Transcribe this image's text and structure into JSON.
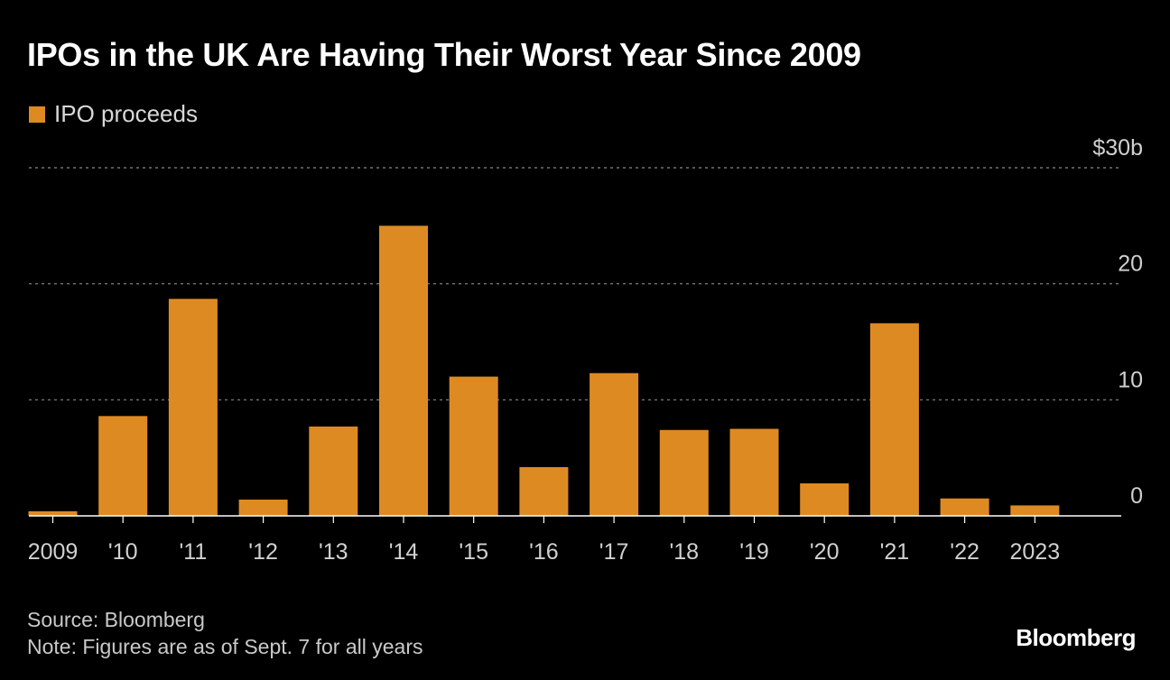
{
  "title": "IPOs in the UK Are Having Their Worst Year Since 2009",
  "legend": {
    "label": "IPO proceeds",
    "color": "#de8a23"
  },
  "footer": {
    "source": "Source: Bloomberg",
    "note": "Note: Figures are as of Sept. 7 for all years"
  },
  "brand": "Bloomberg",
  "chart_data": {
    "type": "bar",
    "title": "IPOs in the UK Are Having Their Worst Year Since 2009",
    "xlabel": "",
    "ylabel": "",
    "categories": [
      "2009",
      "'10",
      "'11",
      "'12",
      "'13",
      "'14",
      "'15",
      "'16",
      "'17",
      "'18",
      "'19",
      "'20",
      "'21",
      "'22",
      "2023"
    ],
    "series": [
      {
        "name": "IPO proceeds",
        "color": "#de8a23",
        "values": [
          0.4,
          8.6,
          18.7,
          1.4,
          7.7,
          25.0,
          12.0,
          4.2,
          12.3,
          7.4,
          7.5,
          2.8,
          16.6,
          1.5,
          0.9
        ]
      }
    ],
    "ylim": [
      0,
      30
    ],
    "yticks": [
      {
        "value": 0,
        "label": "0"
      },
      {
        "value": 10,
        "label": "10"
      },
      {
        "value": 20,
        "label": "20"
      },
      {
        "value": 30,
        "label": "$30b"
      }
    ],
    "grid": true,
    "legend_position": "top-left"
  }
}
